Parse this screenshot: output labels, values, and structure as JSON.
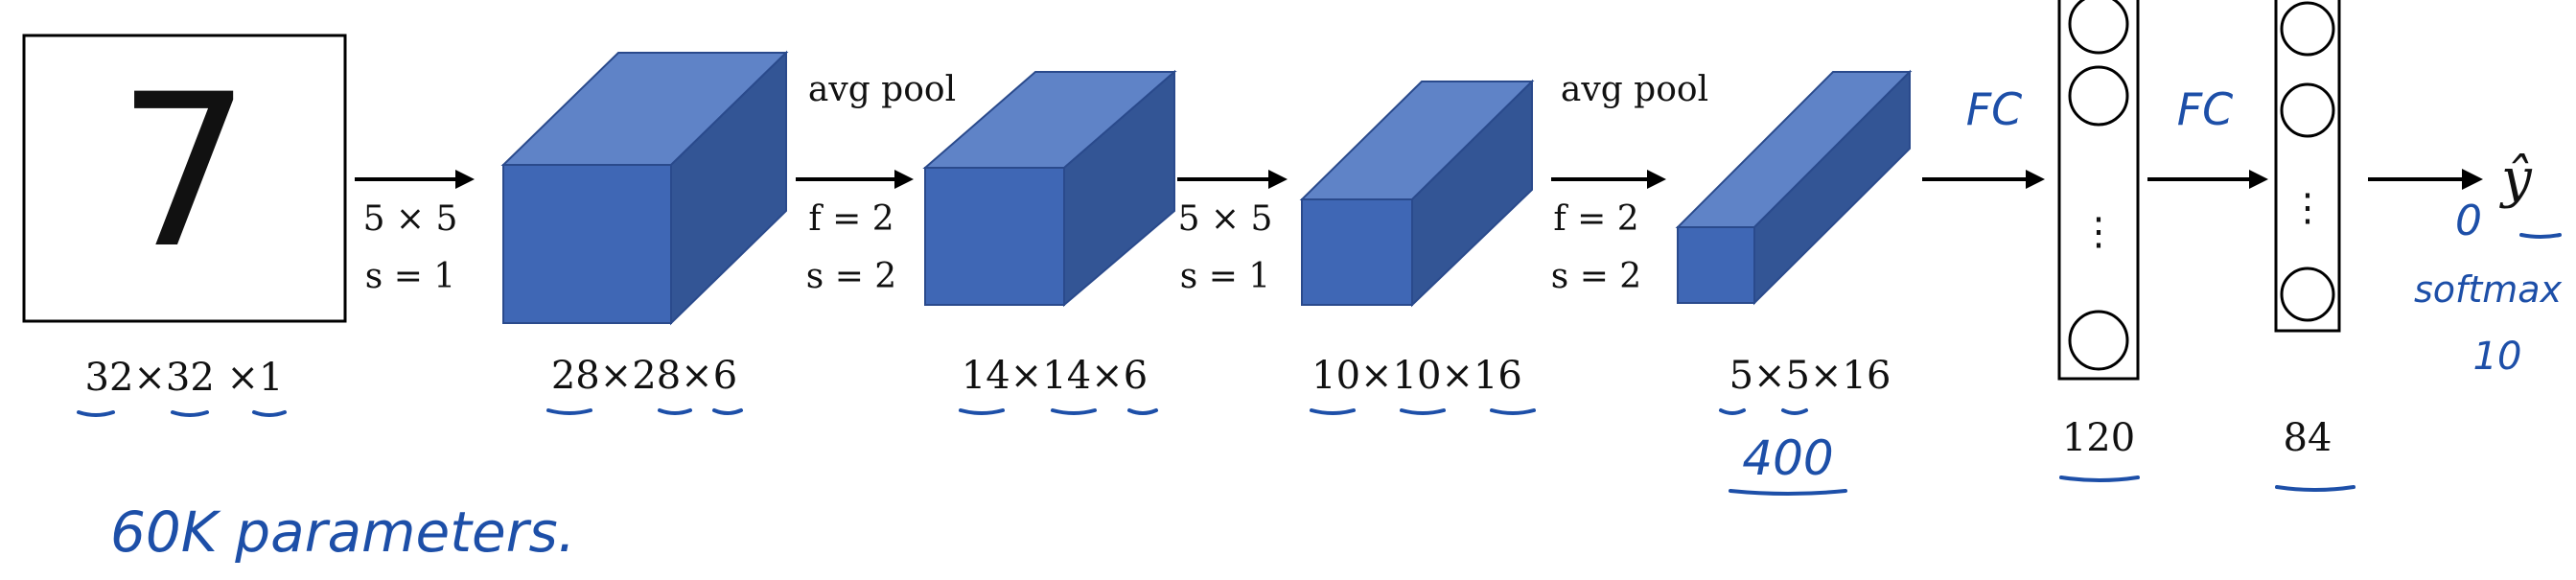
{
  "input": {
    "digit": "7",
    "dims": "32×32 ×1"
  },
  "layers": {
    "conv1": {
      "dims": "28×28×6",
      "op_line1": "5 × 5",
      "op_line2": "s = 1"
    },
    "pool1": {
      "dims": "14×14×6",
      "op_title": "avg pool",
      "op_line1": "f = 2",
      "op_line2": "s = 2"
    },
    "conv2": {
      "dims": "10×10×16",
      "op_line1": "5 × 5",
      "op_line2": "s = 1"
    },
    "pool2": {
      "dims": "5×5×16",
      "op_title": "avg pool",
      "op_line1": "f = 2",
      "op_line2": "s = 2",
      "note": "400"
    },
    "fc1": {
      "dims": "120",
      "fc_label": "FC",
      "ellipsis": "⋮"
    },
    "fc2": {
      "dims": "84",
      "fc_label": "FC",
      "ellipsis": "⋮"
    }
  },
  "output": {
    "symbol": "ŷ",
    "note_softmax": "softmax",
    "note_count": "10",
    "note_zero": "0"
  },
  "handwritten_note": "60K parameters."
}
